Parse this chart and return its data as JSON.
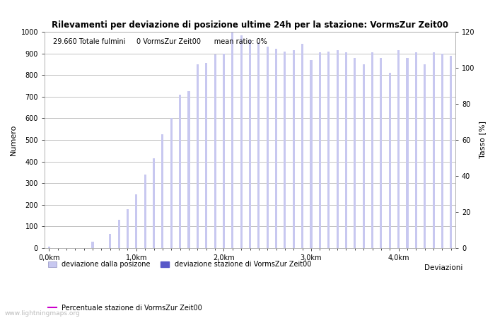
{
  "title": "Rilevamenti per deviazione di posizione ultime 24h per la stazione: VormsZur Zeit00",
  "info_text": "29.660 Totale fulmini     0 VormsZur Zeit00      mean ratio: 0%",
  "ylabel_left": "Numero",
  "ylabel_right": "Tasso [%]",
  "xlabel": "Deviazioni",
  "bar_color_light": "#c8c8f0",
  "bar_color_dark": "#5858c8",
  "line_color": "#cc00cc",
  "background_color": "#ffffff",
  "grid_color": "#aaaaaa",
  "ylim_left": [
    0,
    1000
  ],
  "ylim_right": [
    0,
    120
  ],
  "yticks_left": [
    0,
    100,
    200,
    300,
    400,
    500,
    600,
    700,
    800,
    900,
    1000
  ],
  "yticks_right": [
    0,
    20,
    40,
    60,
    80,
    100,
    120
  ],
  "xtick_labels": [
    "0,0km",
    "1,0km",
    "2,0km",
    "3,0km",
    "4,0km"
  ],
  "xtick_positions": [
    0,
    10,
    20,
    30,
    40
  ],
  "bar_values": [
    5,
    0,
    0,
    0,
    0,
    30,
    0,
    65,
    130,
    180,
    250,
    340,
    415,
    525,
    600,
    710,
    725,
    850,
    855,
    895,
    900,
    1000,
    985,
    960,
    950,
    930,
    920,
    910,
    915,
    945,
    870,
    905,
    910,
    915,
    905,
    880,
    850,
    905,
    880,
    810,
    915,
    880,
    905,
    850,
    905,
    900,
    890
  ],
  "watermark": "www.lightningmaps.org",
  "bar_width": 0.25,
  "legend_items": [
    {
      "label": "deviazione dalla posizone",
      "color": "#c8c8f0",
      "type": "bar"
    },
    {
      "label": "deviazione stazione di VormsZur Zeit00",
      "color": "#5858c8",
      "type": "bar"
    },
    {
      "label": "Percentuale stazione di VormsZur Zeit00",
      "color": "#cc00cc",
      "type": "line"
    }
  ]
}
